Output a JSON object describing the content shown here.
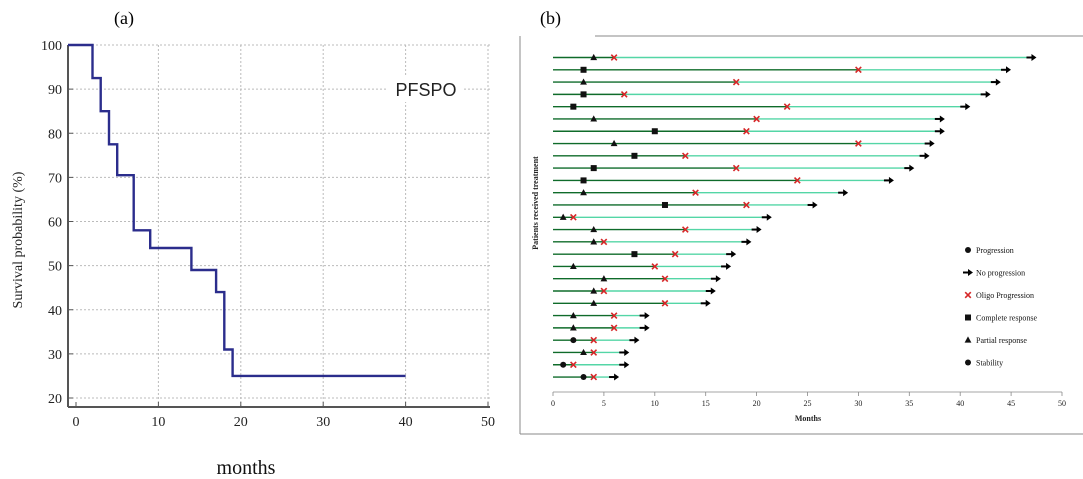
{
  "chart_data": [
    {
      "panel_label": "(a)",
      "type": "line",
      "step": true,
      "ylabel": "Survival probability (%)",
      "xlabel": "months",
      "annotation": "PFSPO",
      "xlim": [
        0,
        50
      ],
      "ylim": [
        20,
        100
      ],
      "xticks": [
        0,
        10,
        20,
        30,
        40,
        50
      ],
      "yticks": [
        20,
        30,
        40,
        50,
        60,
        70,
        80,
        90,
        100
      ],
      "grid": true,
      "color": "#2b2d8c",
      "series": [
        {
          "x": [
            -1,
            2,
            2,
            3,
            3,
            4,
            4,
            5,
            5,
            7,
            7,
            9,
            9,
            14,
            14,
            17,
            17,
            18,
            18,
            19,
            19,
            40
          ],
          "y": [
            100,
            100,
            92.5,
            92.5,
            85,
            85,
            77.5,
            77.5,
            70.5,
            70.5,
            58,
            58,
            54,
            54,
            49,
            49,
            44,
            44,
            31,
            31,
            25,
            25
          ]
        }
      ]
    },
    {
      "panel_label": "(b)",
      "type": "swimmer",
      "ylabel": "Patients received treatment",
      "xlabel": "Months",
      "xlim": [
        0,
        50
      ],
      "xticks": [
        0,
        5,
        10,
        15,
        20,
        25,
        30,
        35,
        40,
        45,
        50
      ],
      "colors": {
        "early": "#0f6b2a",
        "late": "#54d6a6",
        "oligo": "#d62728",
        "marker": "#111111"
      },
      "legend": [
        {
          "symbol": "circle",
          "label": "Progression"
        },
        {
          "symbol": "arrow",
          "label": "No progression"
        },
        {
          "symbol": "x",
          "label": "Oligo Progression"
        },
        {
          "symbol": "square",
          "label": "Complete response"
        },
        {
          "symbol": "triangle",
          "label": "Partial response"
        },
        {
          "symbol": "circle",
          "label": "Stability"
        }
      ],
      "patients": [
        {
          "end": 47,
          "marker": "triangle",
          "marker_at": 4,
          "oligo": 6
        },
        {
          "end": 44.5,
          "marker": "square",
          "marker_at": 3,
          "oligo": 30
        },
        {
          "end": 43.5,
          "marker": "triangle",
          "marker_at": 3,
          "oligo": 18
        },
        {
          "end": 42.5,
          "marker": "square",
          "marker_at": 3,
          "oligo": 7
        },
        {
          "end": 40.5,
          "marker": "square",
          "marker_at": 2,
          "oligo": 23
        },
        {
          "end": 38,
          "marker": "triangle",
          "marker_at": 4,
          "oligo": 20
        },
        {
          "end": 38,
          "marker": "square",
          "marker_at": 10,
          "oligo": 19
        },
        {
          "end": 37,
          "marker": "triangle",
          "marker_at": 6,
          "oligo": 30
        },
        {
          "end": 36.5,
          "marker": "square",
          "marker_at": 8,
          "oligo": 13
        },
        {
          "end": 35,
          "marker": "square",
          "marker_at": 4,
          "oligo": 18
        },
        {
          "end": 33,
          "marker": "square",
          "marker_at": 3,
          "oligo": 24
        },
        {
          "end": 28.5,
          "marker": "triangle",
          "marker_at": 3,
          "oligo": 14
        },
        {
          "end": 25.5,
          "marker": "square",
          "marker_at": 11,
          "oligo": 19
        },
        {
          "end": 21,
          "marker": "triangle",
          "marker_at": 1,
          "oligo": 2
        },
        {
          "end": 20,
          "marker": "triangle",
          "marker_at": 4,
          "oligo": 13
        },
        {
          "end": 19,
          "marker": "triangle",
          "marker_at": 4,
          "oligo": 5
        },
        {
          "end": 17.5,
          "marker": "square",
          "marker_at": 8,
          "oligo": 12
        },
        {
          "end": 17,
          "marker": "triangle",
          "marker_at": 2,
          "oligo": 10
        },
        {
          "end": 16,
          "marker": "triangle",
          "marker_at": 5,
          "oligo": 11
        },
        {
          "end": 15.5,
          "marker": "triangle",
          "marker_at": 4,
          "oligo": 5
        },
        {
          "end": 15,
          "marker": "triangle",
          "marker_at": 4,
          "oligo": 11
        },
        {
          "end": 9,
          "marker": "triangle",
          "marker_at": 2,
          "oligo": 6
        },
        {
          "end": 9,
          "marker": "triangle",
          "marker_at": 2,
          "oligo": 6
        },
        {
          "end": 8,
          "marker": "circle",
          "marker_at": 2,
          "oligo": 4
        },
        {
          "end": 7,
          "marker": "triangle",
          "marker_at": 3,
          "oligo": 4
        },
        {
          "end": 7,
          "marker": "circle",
          "marker_at": 1,
          "oligo": 2
        },
        {
          "end": 6,
          "marker": "circle",
          "marker_at": 3,
          "oligo": 4
        }
      ]
    }
  ]
}
